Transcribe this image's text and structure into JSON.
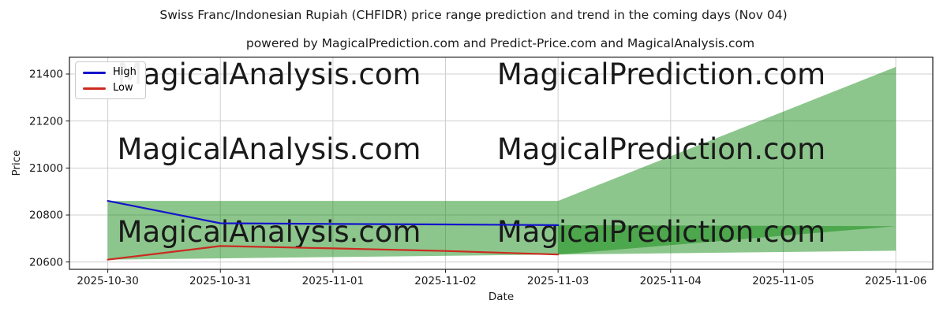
{
  "figure": {
    "title": "Swiss Franc/Indonesian Rupiah (CHFIDR) price range prediction and trend in the coming days (Nov 04)",
    "subtitle": "powered by MagicalPrediction.com and Predict-Price.com and MagicalAnalysis.com"
  },
  "watermark": {
    "analysis": "MagicalAnalysis.com",
    "prediction": "MagicalPrediction.com"
  },
  "legend": {
    "items": [
      {
        "label": "High",
        "color": "#1414cc"
      },
      {
        "label": "Low",
        "color": "#cc2a20"
      }
    ]
  },
  "chart_data": {
    "type": "line",
    "title": "Swiss Franc/Indonesian Rupiah (CHFIDR) price range prediction and trend in the coming days (Nov 04)",
    "subtitle": "powered by MagicalPrediction.com and Predict-Price.com and MagicalAnalysis.com",
    "xlabel": "Date",
    "ylabel": "Price",
    "x": [
      "2025-10-30",
      "2025-10-31",
      "2025-11-01",
      "2025-11-02",
      "2025-11-03",
      "2025-11-04",
      "2025-11-05",
      "2025-11-06"
    ],
    "yticks": [
      20600,
      20800,
      21000,
      21200,
      21400
    ],
    "ylim": [
      20569,
      21472
    ],
    "grid": true,
    "legend_position": "upper left",
    "series": [
      {
        "name": "High",
        "color": "#1414cc",
        "x_indices": [
          0,
          1,
          2,
          3,
          4
        ],
        "values": [
          20860,
          20765,
          20762,
          20760,
          20757
        ]
      },
      {
        "name": "Low",
        "color": "#cc2a20",
        "x_indices": [
          0,
          1,
          2,
          3,
          4
        ],
        "values": [
          20610,
          20668,
          20658,
          20647,
          20632
        ]
      }
    ],
    "bands": [
      {
        "name": "price-range-fan",
        "fill": "rgba(0,128,0,0.45)",
        "points": [
          [
            0,
            20860
          ],
          [
            4,
            20860
          ],
          [
            7,
            21430
          ],
          [
            7,
            20648
          ],
          [
            0,
            20610
          ]
        ]
      },
      {
        "name": "prediction-wedge",
        "fill": "rgba(0,128,0,0.45)",
        "points": [
          [
            4,
            20757
          ],
          [
            7,
            20752
          ],
          [
            4,
            20632
          ]
        ]
      }
    ]
  }
}
